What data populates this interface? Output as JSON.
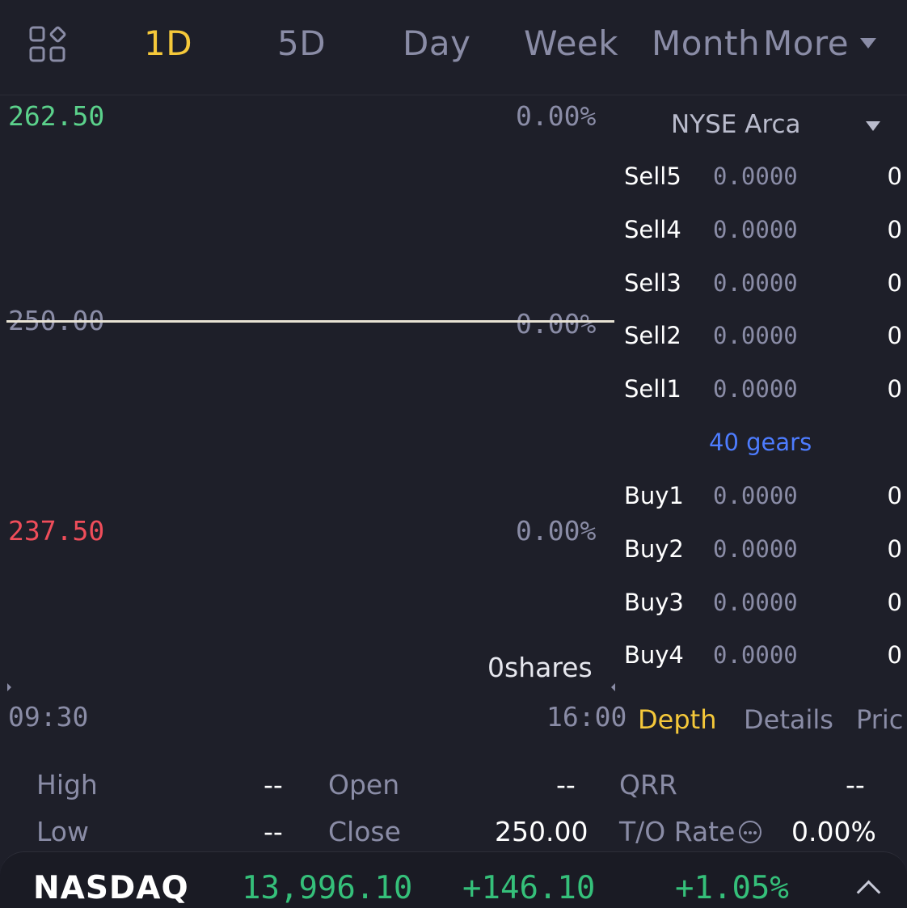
{
  "tabs": [
    {
      "label": "1D",
      "active": true
    },
    {
      "label": "5D",
      "active": false
    },
    {
      "label": "Day",
      "active": false
    },
    {
      "label": "Week",
      "active": false
    },
    {
      "label": "Month",
      "active": false
    },
    {
      "label": "More",
      "active": false
    }
  ],
  "icons": {
    "grid": "grid-icon",
    "more_caret": "caret-down-icon",
    "exchange_caret": "caret-down-icon",
    "info": "info-circle-icon",
    "expand": "chevron-up-icon"
  },
  "chart": {
    "price_high": "262.50",
    "price_mid": "250.00",
    "price_low": "237.50",
    "pct_high": "0.00%",
    "pct_mid": "0.00%",
    "pct_low": "0.00%",
    "volume": "0shares",
    "time_start": "09:30",
    "time_end": "16:00",
    "colors": {
      "up": "#5bd18b",
      "down": "#ef4d5a",
      "line": "#e8e3d4"
    }
  },
  "order_book": {
    "exchange": "NYSE Arca",
    "sells": [
      {
        "side": "Sell5",
        "price": "0.0000",
        "volume": "0"
      },
      {
        "side": "Sell4",
        "price": "0.0000",
        "volume": "0"
      },
      {
        "side": "Sell3",
        "price": "0.0000",
        "volume": "0"
      },
      {
        "side": "Sell2",
        "price": "0.0000",
        "volume": "0"
      },
      {
        "side": "Sell1",
        "price": "0.0000",
        "volume": "0"
      }
    ],
    "gears": "40 gears",
    "buys": [
      {
        "side": "Buy1",
        "price": "0.0000",
        "volume": "0"
      },
      {
        "side": "Buy2",
        "price": "0.0000",
        "volume": "0"
      },
      {
        "side": "Buy3",
        "price": "0.0000",
        "volume": "0"
      },
      {
        "side": "Buy4",
        "price": "0.0000",
        "volume": "0"
      }
    ],
    "subtabs": [
      {
        "label": "Depth",
        "active": true
      },
      {
        "label": "Details",
        "active": false
      },
      {
        "label": "Pric",
        "active": false
      }
    ]
  },
  "stats": {
    "high_label": "High",
    "high_value": "--",
    "open_label": "Open",
    "open_value": "--",
    "qrr_label": "QRR",
    "qrr_value": "--",
    "low_label": "Low",
    "low_value": "--",
    "close_label": "Close",
    "close_value": "250.00",
    "turnover_label": "T/O Rate",
    "turnover_value": "0.00%"
  },
  "ticker": {
    "name": "NASDAQ",
    "value": "13,996.10",
    "change": "+146.10",
    "change_pct": "+1.05%",
    "color": "#35c07a"
  }
}
